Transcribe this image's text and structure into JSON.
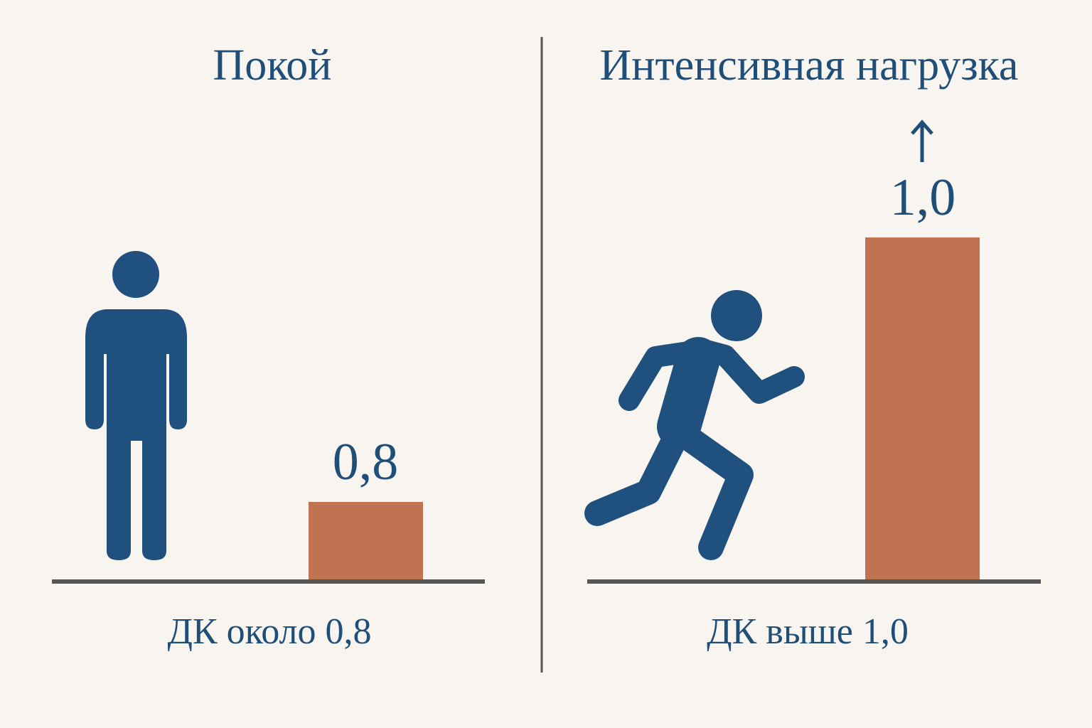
{
  "panels": [
    {
      "title": "Покой",
      "value_label": "0,8",
      "caption": "ДК около 0,8"
    },
    {
      "title": "Интенсивная нагрузка",
      "value_label": "1,0",
      "caption": "ДК выше 1,0"
    }
  ]
}
